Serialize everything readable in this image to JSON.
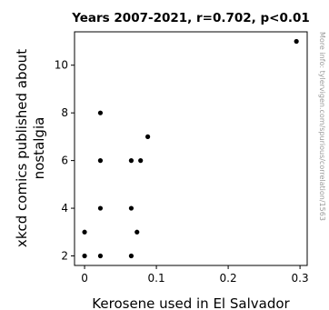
{
  "chart_data": {
    "type": "scatter",
    "title": "Years 2007-2021, r=0.702, p<0.01",
    "xlabel": "Kerosene used in El Salvador",
    "ylabel_lines": [
      "xkcd comics published about",
      "nostalgia"
    ],
    "xlim": [
      -0.014,
      0.31
    ],
    "ylim": [
      1.6,
      11.4
    ],
    "x_ticks": [
      0,
      0.1,
      0.2,
      0.3
    ],
    "x_tick_labels": [
      "0",
      "0.1",
      "0.2",
      "0.3"
    ],
    "y_ticks": [
      2,
      4,
      6,
      8,
      10
    ],
    "y_tick_labels": [
      "2",
      "4",
      "6",
      "8",
      "10"
    ],
    "grid": false,
    "legend": "none",
    "point_color": "#000000",
    "points": [
      {
        "x": 0.0,
        "y": 2
      },
      {
        "x": 0.0,
        "y": 3
      },
      {
        "x": 0.022,
        "y": 2
      },
      {
        "x": 0.022,
        "y": 4
      },
      {
        "x": 0.022,
        "y": 6
      },
      {
        "x": 0.022,
        "y": 8
      },
      {
        "x": 0.065,
        "y": 2
      },
      {
        "x": 0.065,
        "y": 4
      },
      {
        "x": 0.065,
        "y": 6
      },
      {
        "x": 0.073,
        "y": 3
      },
      {
        "x": 0.078,
        "y": 6
      },
      {
        "x": 0.088,
        "y": 7
      },
      {
        "x": 0.295,
        "y": 11
      }
    ]
  },
  "watermark": "More info: tylervigen.com/spurious/correlation/1563"
}
